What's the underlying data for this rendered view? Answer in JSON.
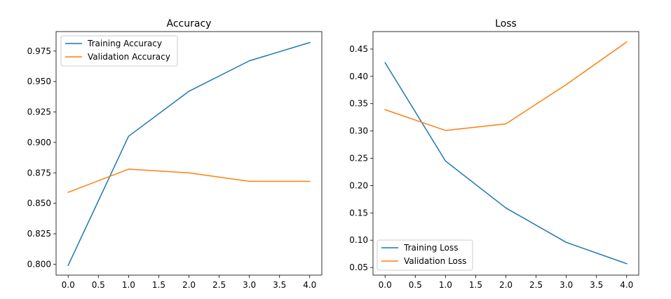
{
  "chart_data": [
    {
      "type": "line",
      "title": "Accuracy",
      "xlabel": "",
      "ylabel": "",
      "x": [
        0,
        1,
        2,
        3,
        4
      ],
      "xlim": [
        -0.2,
        4.2
      ],
      "ylim": [
        0.791,
        0.991
      ],
      "xticks": [
        0.0,
        0.5,
        1.0,
        1.5,
        2.0,
        2.5,
        3.0,
        3.5,
        4.0
      ],
      "xtick_labels": [
        "0.0",
        "0.5",
        "1.0",
        "1.5",
        "2.0",
        "2.5",
        "3.0",
        "3.5",
        "4.0"
      ],
      "yticks": [
        0.8,
        0.825,
        0.85,
        0.875,
        0.9,
        0.925,
        0.95,
        0.975
      ],
      "ytick_labels": [
        "0.800",
        "0.825",
        "0.850",
        "0.875",
        "0.900",
        "0.925",
        "0.950",
        "0.975"
      ],
      "legend_position": "top-left",
      "series": [
        {
          "name": "Training Accuracy",
          "color": "#1f77b4",
          "values": [
            0.799,
            0.905,
            0.942,
            0.967,
            0.982
          ]
        },
        {
          "name": "Validation Accuracy",
          "color": "#ff7f0e",
          "values": [
            0.859,
            0.878,
            0.875,
            0.868,
            0.868
          ]
        }
      ]
    },
    {
      "type": "line",
      "title": "Loss",
      "xlabel": "",
      "ylabel": "",
      "x": [
        0,
        1,
        2,
        3,
        4
      ],
      "xlim": [
        -0.2,
        4.2
      ],
      "ylim": [
        0.036,
        0.482
      ],
      "xticks": [
        0.0,
        0.5,
        1.0,
        1.5,
        2.0,
        2.5,
        3.0,
        3.5,
        4.0
      ],
      "xtick_labels": [
        "0.0",
        "0.5",
        "1.0",
        "1.5",
        "2.0",
        "2.5",
        "3.0",
        "3.5",
        "4.0"
      ],
      "yticks": [
        0.05,
        0.1,
        0.15,
        0.2,
        0.25,
        0.3,
        0.35,
        0.4,
        0.45
      ],
      "ytick_labels": [
        "0.05",
        "0.10",
        "0.15",
        "0.20",
        "0.25",
        "0.30",
        "0.35",
        "0.40",
        "0.45"
      ],
      "legend_position": "bottom-left",
      "series": [
        {
          "name": "Training Loss",
          "color": "#1f77b4",
          "values": [
            0.425,
            0.245,
            0.159,
            0.096,
            0.057
          ]
        },
        {
          "name": "Validation Loss",
          "color": "#ff7f0e",
          "values": [
            0.339,
            0.301,
            0.313,
            0.385,
            0.463
          ]
        }
      ]
    }
  ]
}
